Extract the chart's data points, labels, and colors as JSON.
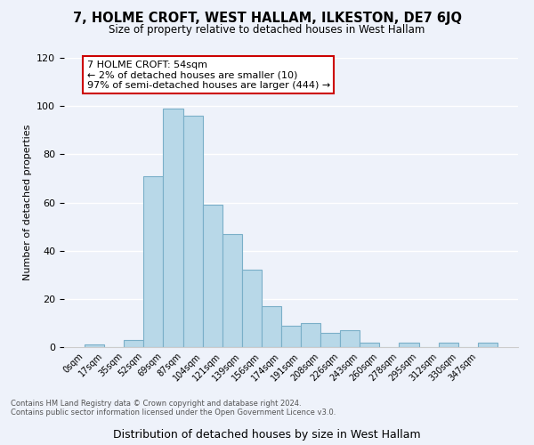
{
  "title": "7, HOLME CROFT, WEST HALLAM, ILKESTON, DE7 6JQ",
  "subtitle": "Size of property relative to detached houses in West Hallam",
  "xlabel": "Distribution of detached houses by size in West Hallam",
  "ylabel": "Number of detached properties",
  "bar_color": "#b8d8e8",
  "bar_edge_color": "#7aafc8",
  "background_color": "#eef2fa",
  "annotation_box_text": "7 HOLME CROFT: 54sqm\n← 2% of detached houses are smaller (10)\n97% of semi-detached houses are larger (444) →",
  "annotation_box_color": "#ffffff",
  "annotation_box_edge_color": "#cc0000",
  "footer_line1": "Contains HM Land Registry data © Crown copyright and database right 2024.",
  "footer_line2": "Contains public sector information licensed under the Open Government Licence v3.0.",
  "bin_labels": [
    "0sqm",
    "17sqm",
    "35sqm",
    "52sqm",
    "69sqm",
    "87sqm",
    "104sqm",
    "121sqm",
    "139sqm",
    "156sqm",
    "174sqm",
    "191sqm",
    "208sqm",
    "226sqm",
    "243sqm",
    "260sqm",
    "278sqm",
    "295sqm",
    "312sqm",
    "330sqm",
    "347sqm"
  ],
  "bar_heights": [
    1,
    0,
    3,
    71,
    99,
    96,
    59,
    47,
    32,
    17,
    9,
    10,
    6,
    7,
    2,
    0,
    2,
    0,
    2,
    0,
    2
  ],
  "ylim": [
    0,
    120
  ],
  "yticks": [
    0,
    20,
    40,
    60,
    80,
    100,
    120
  ],
  "grid_color": "#ffffff",
  "spine_color": "#cccccc"
}
